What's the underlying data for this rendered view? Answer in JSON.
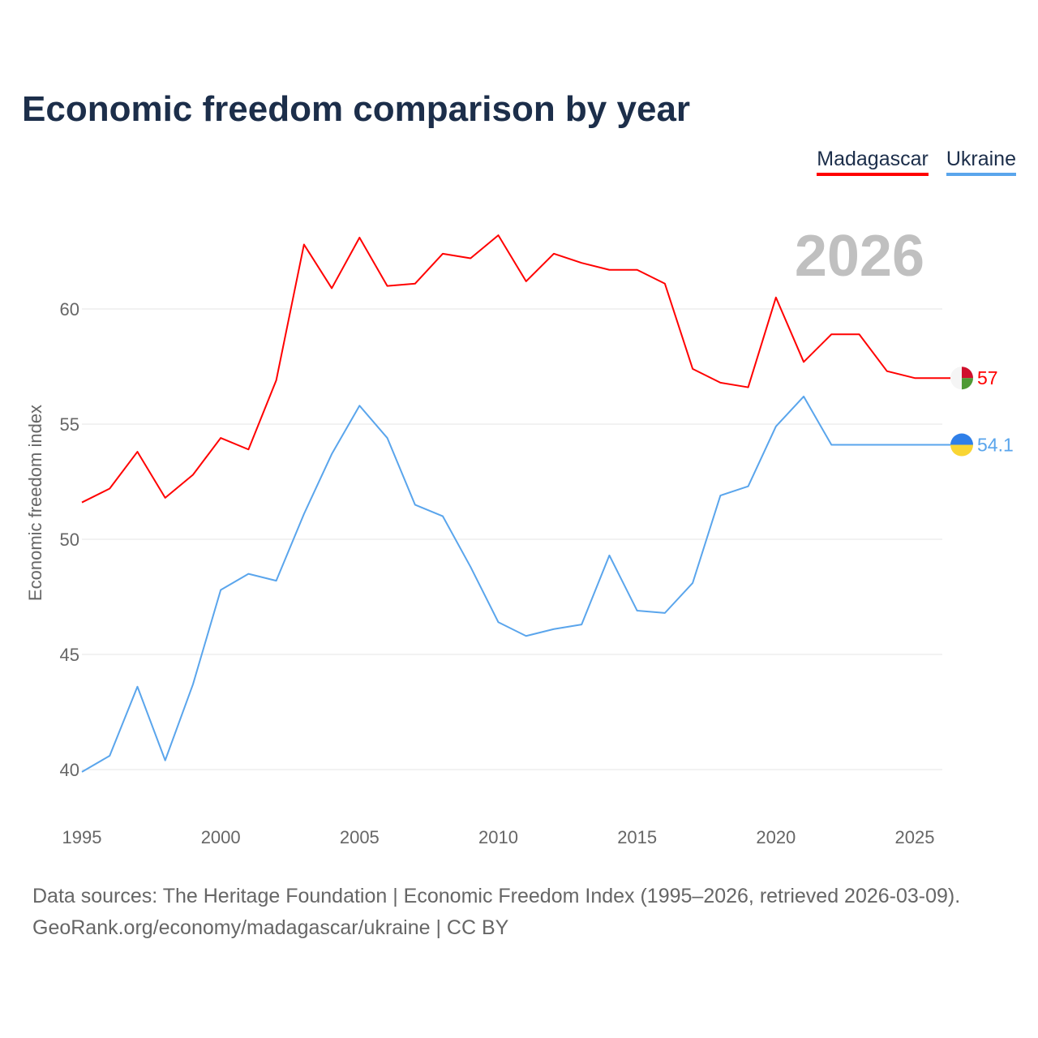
{
  "chart_data": {
    "type": "line",
    "title": "Economic freedom comparison by year",
    "xlabel": "",
    "ylabel": "Economic freedom index",
    "x": [
      1995,
      1996,
      1997,
      1998,
      1999,
      2000,
      2001,
      2002,
      2003,
      2004,
      2005,
      2006,
      2007,
      2008,
      2009,
      2010,
      2011,
      2012,
      2013,
      2014,
      2015,
      2016,
      2017,
      2018,
      2019,
      2020,
      2021,
      2022,
      2023,
      2024,
      2025,
      2026
    ],
    "xticks": [
      1995,
      2000,
      2005,
      2010,
      2015,
      2020,
      2025
    ],
    "yticks": [
      40,
      45,
      50,
      55,
      60
    ],
    "xlim": [
      1995,
      2026
    ],
    "ylim": [
      38,
      64
    ],
    "grid": true,
    "legend_position": "top-right",
    "year_label": "2026",
    "series": [
      {
        "name": "Madagascar",
        "color": "#ff0000",
        "end_label": "57",
        "values": [
          51.6,
          52.2,
          53.8,
          51.8,
          52.8,
          54.4,
          53.9,
          56.9,
          62.8,
          60.9,
          63.1,
          61.0,
          61.1,
          62.4,
          62.2,
          63.2,
          61.2,
          62.4,
          62.0,
          61.7,
          61.7,
          61.1,
          57.4,
          56.8,
          56.6,
          60.5,
          57.7,
          58.9,
          58.9,
          57.3,
          57.0,
          57.0
        ]
      },
      {
        "name": "Ukraine",
        "color": "#5aa5ec",
        "end_label": "54.1",
        "values": [
          39.9,
          40.6,
          43.6,
          40.4,
          43.7,
          47.8,
          48.5,
          48.2,
          51.1,
          53.7,
          55.8,
          54.4,
          51.5,
          51.0,
          48.8,
          46.4,
          45.8,
          46.1,
          46.3,
          49.3,
          46.9,
          46.8,
          48.1,
          51.9,
          52.3,
          54.9,
          56.2,
          54.1,
          54.1,
          54.1,
          54.1,
          54.1
        ]
      }
    ]
  },
  "source": {
    "line1": "Data sources: The Heritage Foundation | Economic Freedom Index (1995–2026, retrieved 2026-03-09).",
    "line2": "GeoRank.org/economy/madagascar/ukraine | CC BY"
  }
}
